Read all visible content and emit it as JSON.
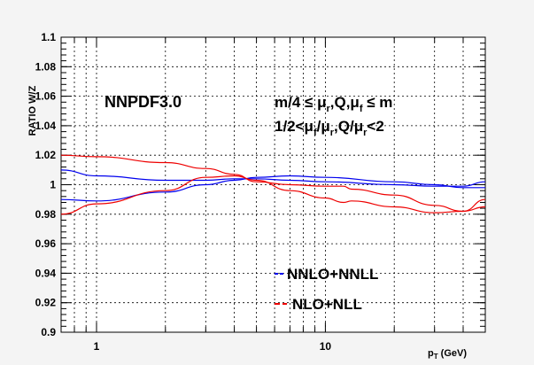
{
  "chart_data": {
    "type": "line",
    "x_scale": "log",
    "xlim": [
      0.7,
      50
    ],
    "ylim": [
      0.9,
      1.1
    ],
    "xlabel": "p",
    "xlabel_sub": "T",
    "xlabel_unit": " (GeV)",
    "ylabel": "RATIO W/Z",
    "x_tick_labels": [
      "1",
      "10"
    ],
    "y_ticks": [
      0.9,
      0.92,
      0.94,
      0.96,
      0.98,
      1.0,
      1.02,
      1.04,
      1.06,
      1.08,
      1.1
    ],
    "y_tick_labels": [
      "0.9",
      "0.92",
      "0.94",
      "0.96",
      "0.98",
      "1",
      "1.02",
      "1.04",
      "1.06",
      "1.08",
      "1.1"
    ],
    "grid": true,
    "legend_position": "bottom-center",
    "annotations": {
      "pdf": "NNPDF3.0",
      "line1": [
        "m/4 ≤ μ",
        "r",
        ",Q,μ",
        "f",
        " ≤ m"
      ],
      "line2": [
        "1/2<μ",
        "f",
        "/μ",
        "r",
        ",Q/μ",
        "r",
        "<2"
      ]
    },
    "legend": [
      {
        "label": "NNLO+NNLL",
        "color": "#0000ee",
        "dash": "4,2"
      },
      {
        "label": "NLO+NLL",
        "color": "#ee0000",
        "dash": "6,3"
      }
    ],
    "series": [
      {
        "name": "NNLO+NNLL",
        "color": "#0000ee",
        "band": "upper",
        "x": [
          0.7,
          1.0,
          2.0,
          3.0,
          4.0,
          5.0,
          7.0,
          10.0,
          20.0,
          30.0,
          40.0,
          50.0
        ],
        "y": [
          1.01,
          1.006,
          1.003,
          1.003,
          1.004,
          1.004,
          1.003,
          1.002,
          1.0,
          0.999,
          0.999,
          1.002
        ]
      },
      {
        "name": "NNLO+NNLL",
        "color": "#0000ee",
        "band": "lower",
        "x": [
          0.7,
          1.0,
          2.0,
          3.0,
          4.0,
          5.0,
          7.0,
          10.0,
          20.0,
          30.0,
          40.0,
          50.0
        ],
        "y": [
          0.99,
          0.989,
          0.995,
          1.0,
          1.003,
          1.005,
          1.006,
          1.005,
          1.002,
          1.0,
          0.998,
          0.998
        ]
      },
      {
        "name": "NLO+NLL",
        "color": "#ee0000",
        "band": "upper",
        "x": [
          0.7,
          1.0,
          2.0,
          3.0,
          4.0,
          5.0,
          7.0,
          10.0,
          12.0,
          13.0,
          20.0,
          30.0,
          40.0,
          50.0
        ],
        "y": [
          1.02,
          1.019,
          1.015,
          1.011,
          1.007,
          1.002,
          1.0,
          0.999,
          0.999,
          0.997,
          0.993,
          0.986,
          0.982,
          0.985
        ]
      },
      {
        "name": "NLO+NLL",
        "color": "#ee0000",
        "band": "lower",
        "x": [
          0.7,
          1.0,
          2.0,
          3.0,
          4.0,
          5.0,
          7.0,
          10.0,
          12.0,
          13.0,
          20.0,
          30.0,
          40.0,
          50.0
        ],
        "y": [
          0.98,
          0.987,
          0.996,
          1.005,
          1.006,
          1.003,
          0.996,
          0.991,
          0.988,
          0.989,
          0.985,
          0.981,
          0.982,
          0.99
        ]
      }
    ]
  }
}
